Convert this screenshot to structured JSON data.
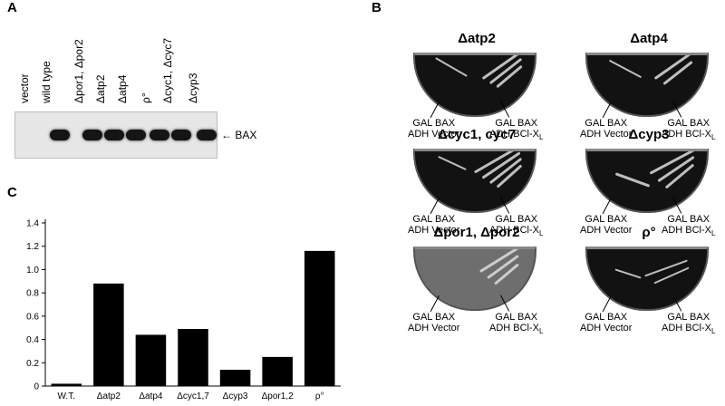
{
  "panelA": {
    "letter": "A",
    "lanes": [
      "vector",
      "wild type",
      "Δpor1, Δpor2",
      "Δatp2",
      "Δatp4",
      "ρ°",
      "Δcyc1, Δcyc7",
      "Δcyp3"
    ],
    "band_label": "← BAX"
  },
  "panelB": {
    "letter": "B",
    "left_caption": [
      "GAL BAX",
      "ADH Vector"
    ],
    "right_caption": [
      "GAL BAX",
      "ADH BCl-X"
    ],
    "right_caption_sub": "L",
    "dishes": [
      {
        "title": "Δatp2"
      },
      {
        "title": "Δatp4"
      },
      {
        "title": "Δcyc1, cyc7"
      },
      {
        "title": "Δcyp3"
      },
      {
        "title": "Δpor1, Δpor2"
      },
      {
        "title": "ρ°"
      }
    ]
  },
  "chart_data": {
    "type": "bar",
    "letter": "C",
    "categories": [
      "W.T.",
      "Δatp2",
      "Δatp4",
      "Δcyc1,7",
      "Δcyp3",
      "Δpor1,2",
      "ρ°"
    ],
    "values": [
      0.02,
      0.88,
      0.44,
      0.49,
      0.14,
      0.25,
      1.16
    ],
    "yticks": [
      "0",
      "0.2",
      "0.4",
      "0.6",
      "0.8",
      "1.0",
      "1.2",
      "1.4"
    ],
    "ylim": [
      0,
      1.4
    ],
    "bar_color": "#000000"
  }
}
